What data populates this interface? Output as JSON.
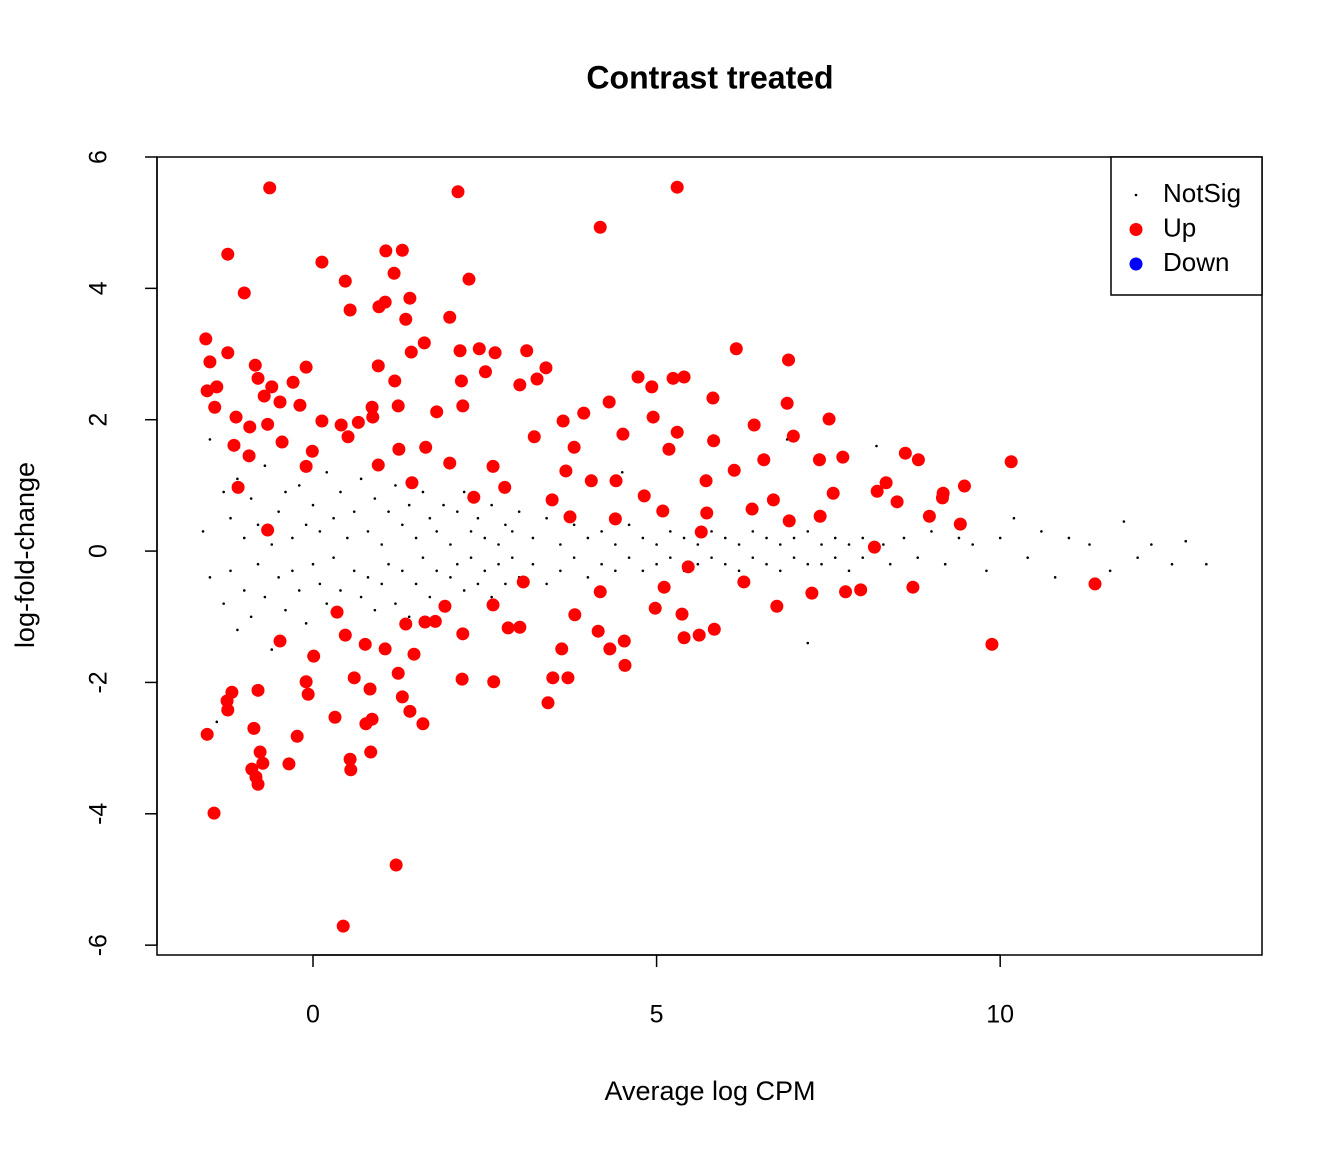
{
  "chart_data": {
    "type": "scatter",
    "title": "Contrast treated",
    "xlabel": "Average log CPM",
    "ylabel": "log-fold-change",
    "xlim": [
      -2.27,
      13.81
    ],
    "ylim": [
      -6.15,
      6.0
    ],
    "xticks": [
      0,
      5,
      10
    ],
    "yticks": [
      -6,
      -4,
      -2,
      0,
      2,
      4,
      6
    ],
    "legend": "topright",
    "series": [
      {
        "name": "NotSig",
        "color": "#000000",
        "x": [
          -1.6,
          -1.5,
          -1.5,
          -1.4,
          -1.3,
          -1.3,
          -1.2,
          -1.2,
          -1.1,
          -1.1,
          -1.0,
          -1.0,
          -0.9,
          -0.9,
          -0.8,
          -0.8,
          -0.7,
          -0.7,
          -0.6,
          -0.6,
          -0.5,
          -0.5,
          -0.4,
          -0.4,
          -0.3,
          -0.3,
          -0.2,
          -0.2,
          -0.1,
          -0.1,
          0,
          0,
          0.1,
          0.1,
          0.2,
          0.2,
          0.3,
          0.3,
          0.4,
          0.4,
          0.5,
          0.5,
          0.6,
          0.6,
          0.7,
          0.7,
          0.8,
          0.8,
          0.9,
          0.9,
          1.0,
          1.0,
          1.1,
          1.1,
          1.2,
          1.2,
          1.3,
          1.3,
          1.4,
          1.4,
          1.5,
          1.5,
          1.6,
          1.6,
          1.7,
          1.7,
          1.8,
          1.8,
          1.9,
          1.9,
          2.0,
          2.0,
          2.1,
          2.1,
          2.2,
          2.2,
          2.3,
          2.3,
          2.4,
          2.4,
          2.5,
          2.5,
          2.6,
          2.6,
          2.7,
          2.7,
          2.8,
          2.8,
          2.9,
          2.9,
          3.0,
          3.0,
          3.2,
          3.2,
          3.4,
          3.4,
          3.6,
          3.6,
          3.8,
          3.8,
          4.0,
          4.0,
          4.2,
          4.2,
          4.4,
          4.4,
          4.6,
          4.6,
          4.8,
          4.8,
          5.0,
          5.0,
          5.2,
          5.2,
          5.4,
          5.4,
          5.6,
          5.6,
          5.8,
          5.8,
          6.0,
          6.0,
          6.2,
          6.2,
          6.4,
          6.4,
          6.6,
          6.6,
          6.8,
          6.8,
          7.0,
          7.0,
          7.2,
          7.2,
          7.4,
          7.4,
          7.6,
          7.6,
          7.8,
          7.8,
          8.0,
          8.0,
          8.2,
          8.3,
          8.4,
          8.6,
          8.8,
          9.0,
          9.2,
          9.4,
          9.6,
          9.8,
          10.0,
          10.2,
          10.4,
          10.6,
          10.8,
          11.0,
          11.3,
          11.6,
          11.8,
          12.0,
          12.2,
          12.5,
          12.7,
          13.0,
          4.5,
          6.9,
          3.0,
          7.2
        ],
        "values": [
          0.3,
          -0.4,
          1.7,
          -2.6,
          0.9,
          -0.8,
          0.5,
          -0.3,
          1.1,
          -1.2,
          0.2,
          -0.6,
          0.8,
          -1.0,
          0.4,
          -0.2,
          1.3,
          -0.7,
          0.1,
          -1.5,
          0.6,
          -0.4,
          0.9,
          -0.9,
          0.2,
          -0.3,
          1.0,
          -0.6,
          0.4,
          -1.1,
          0.7,
          -0.2,
          -0.5,
          0.3,
          1.2,
          -0.8,
          0.5,
          -0.1,
          -0.6,
          0.9,
          0.2,
          -1.3,
          0.6,
          -0.3,
          1.1,
          -0.7,
          0.3,
          -0.4,
          -0.9,
          0.8,
          0.1,
          -0.5,
          0.6,
          -0.2,
          1.0,
          -0.8,
          0.4,
          -0.3,
          -1.0,
          0.7,
          0.2,
          -0.5,
          0.9,
          -0.1,
          0.5,
          -0.7,
          0.3,
          -0.3,
          -0.9,
          0.7,
          0.1,
          -0.4,
          0.6,
          -0.2,
          0.9,
          -0.6,
          0.3,
          -0.1,
          -0.5,
          0.5,
          0.2,
          -0.3,
          0.7,
          -0.7,
          0.1,
          -0.2,
          0.4,
          -0.5,
          -0.1,
          0.3,
          0.6,
          -0.4,
          0.2,
          -0.2,
          0.5,
          -0.5,
          0.1,
          -0.3,
          0.4,
          -0.1,
          -0.4,
          0.2,
          0.3,
          -0.2,
          0.1,
          -0.3,
          0.4,
          -0.1,
          0.2,
          -0.3,
          0.1,
          -0.2,
          0.3,
          -0.1,
          0.2,
          -0.3,
          0.1,
          -0.2,
          0.3,
          -0.1,
          0.2,
          -0.2,
          0.1,
          -0.3,
          0.3,
          -0.1,
          0.2,
          -0.2,
          0.1,
          -0.3,
          0.2,
          -0.1,
          0.3,
          -0.2,
          0.1,
          -0.2,
          0.2,
          -0.1,
          0.1,
          -0.3,
          0.2,
          -0.1,
          1.6,
          0.1,
          -0.2,
          0.2,
          -0.1,
          0.3,
          -0.2,
          0.2,
          0.1,
          -0.3,
          0.2,
          0.5,
          -0.1,
          0.3,
          -0.4,
          0.2,
          0.1,
          -0.3,
          0.45,
          -0.1,
          0.1,
          -0.2,
          0.15,
          -0.2,
          1.2,
          1.7,
          -1.1,
          -1.4
        ]
      },
      {
        "name": "Up",
        "color": "#ff0000",
        "x": [
          -0.63,
          2.11,
          5.3,
          4.18,
          -1.24,
          1.06,
          1.3,
          0.13,
          1.18,
          2.27,
          0.47,
          -1.0,
          1.41,
          1.05,
          0.96,
          0.54,
          1.35,
          1.99,
          -1.56,
          1.62,
          6.16,
          2.42,
          2.14,
          2.65,
          3.11,
          -1.24,
          1.43,
          3.39,
          6.92,
          0.95,
          -0.1,
          -1.5,
          -0.84,
          4.73,
          5.24,
          5.4,
          2.51,
          2.16,
          1.19,
          -0.29,
          -0.8,
          3.26,
          3.01,
          4.93,
          -0.6,
          -1.4,
          -1.54,
          5.82,
          4.31,
          6.9,
          -0.71,
          -0.19,
          -1.43,
          -0.48,
          0.86,
          1.24,
          2.18,
          3.94,
          1.8,
          4.95,
          7.51,
          0.13,
          0.66,
          0.87,
          -1.12,
          -0.92,
          -0.66,
          0.41,
          6.42,
          3.64,
          5.3,
          4.51,
          5.83,
          6.99,
          3.22,
          0.51,
          -1.15,
          -0.45,
          1.25,
          1.64,
          -0.01,
          3.8,
          5.18,
          7.71,
          8.62,
          10.16,
          8.81,
          6.56,
          7.37,
          -0.93,
          0.95,
          -0.1,
          1.99,
          2.62,
          3.68,
          6.13,
          4.41,
          4.05,
          5.72,
          8.34,
          9.48,
          -1.09,
          1.44,
          2.79,
          2.34,
          4.82,
          8.21,
          9.17,
          3.48,
          6.7,
          7.57,
          8.5,
          9.16,
          5.09,
          5.73,
          6.39,
          7.38,
          8.97,
          4.4,
          3.74,
          9.42,
          6.93,
          -0.66,
          5.65,
          8.17,
          5.46,
          3.06,
          11.38,
          6.27,
          8.73,
          7.75,
          7.97,
          7.26,
          5.11,
          4.18,
          1.92,
          2.62,
          0.35,
          3.81,
          4.98,
          6.75,
          5.37,
          1.63,
          1.35,
          1.78,
          2.84,
          3.01,
          4.15,
          5.84,
          2.18,
          5.4,
          5.62,
          0.47,
          -0.48,
          4.53,
          9.88,
          0.76,
          1.05,
          1.47,
          3.62,
          0.01,
          4.32,
          1.24,
          3.49,
          3.71,
          0.6,
          2.17,
          -0.1,
          4.54,
          2.63,
          0.83,
          -0.8,
          -1.18,
          -1.25,
          -0.07,
          1.3,
          3.42,
          1.41,
          -1.24,
          0.32,
          0.86,
          1.6,
          0.77,
          -0.86,
          -1.54,
          -0.23,
          -0.77,
          0.84,
          0.54,
          -0.73,
          -0.35,
          -0.89,
          0.55,
          -0.83,
          -0.8,
          -1.44,
          1.21,
          0.44
        ],
        "values": [
          5.53,
          5.47,
          5.54,
          4.93,
          4.52,
          4.57,
          4.58,
          4.4,
          4.23,
          4.14,
          4.11,
          3.93,
          3.85,
          3.79,
          3.72,
          3.67,
          3.53,
          3.56,
          3.23,
          3.17,
          3.08,
          3.08,
          3.05,
          3.02,
          3.05,
          3.02,
          3.03,
          2.79,
          2.91,
          2.82,
          2.8,
          2.88,
          2.83,
          2.65,
          2.63,
          2.65,
          2.73,
          2.59,
          2.59,
          2.57,
          2.63,
          2.62,
          2.53,
          2.5,
          2.5,
          2.5,
          2.44,
          2.33,
          2.27,
          2.25,
          2.36,
          2.22,
          2.19,
          2.27,
          2.19,
          2.21,
          2.21,
          2.1,
          2.12,
          2.04,
          2.01,
          1.98,
          1.96,
          2.04,
          2.04,
          1.89,
          1.93,
          1.92,
          1.92,
          1.98,
          1.81,
          1.78,
          1.68,
          1.75,
          1.74,
          1.74,
          1.61,
          1.66,
          1.55,
          1.58,
          1.52,
          1.58,
          1.55,
          1.43,
          1.49,
          1.36,
          1.39,
          1.39,
          1.39,
          1.45,
          1.31,
          1.29,
          1.34,
          1.29,
          1.22,
          1.23,
          1.07,
          1.07,
          1.07,
          1.04,
          0.99,
          0.97,
          1.04,
          0.97,
          0.82,
          0.84,
          0.91,
          0.88,
          0.78,
          0.78,
          0.88,
          0.75,
          0.81,
          0.61,
          0.58,
          0.64,
          0.53,
          0.53,
          0.49,
          0.52,
          0.41,
          0.46,
          0.32,
          0.29,
          0.06,
          -0.24,
          -0.47,
          -0.5,
          -0.47,
          -0.55,
          -0.62,
          -0.59,
          -0.64,
          -0.55,
          -0.62,
          -0.84,
          -0.82,
          -0.93,
          -0.97,
          -0.87,
          -0.84,
          -0.96,
          -1.08,
          -1.11,
          -1.07,
          -1.17,
          -1.16,
          -1.22,
          -1.19,
          -1.26,
          -1.32,
          -1.28,
          -1.28,
          -1.37,
          -1.37,
          -1.42,
          -1.42,
          -1.49,
          -1.57,
          -1.49,
          -1.6,
          -1.49,
          -1.86,
          -1.93,
          -1.93,
          -1.93,
          -1.95,
          -1.99,
          -1.74,
          -1.99,
          -2.1,
          -2.12,
          -2.15,
          -2.28,
          -2.18,
          -2.22,
          -2.31,
          -2.44,
          -2.42,
          -2.53,
          -2.56,
          -2.63,
          -2.63,
          -2.7,
          -2.79,
          -2.82,
          -3.06,
          -3.06,
          -3.17,
          -3.23,
          -3.24,
          -3.32,
          -3.33,
          -3.44,
          -3.55,
          -3.99,
          -4.78,
          -5.71
        ]
      },
      {
        "name": "Down",
        "color": "#0000ff",
        "x": [],
        "values": []
      }
    ]
  }
}
